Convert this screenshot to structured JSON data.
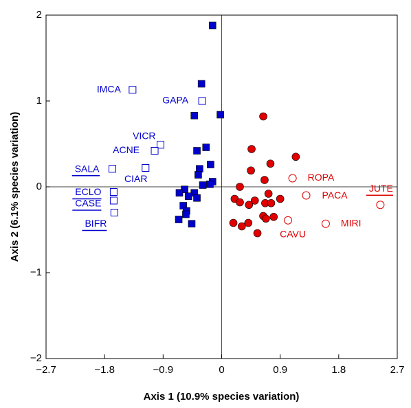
{
  "chart_data": {
    "type": "scatter",
    "x_label": "Axis 1 (10.9% species variation)",
    "y_label": "Axis 2 (6.1% species variation)",
    "xlim": [
      -2.7,
      2.7
    ],
    "ylim": [
      -2,
      2
    ],
    "xticks": [
      {
        "value": -2.7,
        "label": "−2.7"
      },
      {
        "value": -1.8,
        "label": "−1.8"
      },
      {
        "value": -0.9,
        "label": "−0.9"
      },
      0,
      0.9,
      1.8,
      2.7
    ],
    "yticks": [
      {
        "value": -2,
        "label": "−2"
      },
      {
        "value": -1,
        "label": "−1"
      },
      0,
      1,
      2
    ],
    "series": [
      {
        "color": "#0000cc",
        "marker": "square",
        "filled": true,
        "x": [
          -0.14,
          -0.31,
          -0.42,
          -0.02,
          -0.24,
          -0.38,
          -0.17,
          -0.34,
          -0.36,
          -0.14,
          -0.18,
          -0.29,
          -0.57,
          -0.65,
          -0.42,
          -0.51,
          -0.38,
          -0.59,
          -0.54,
          -0.66,
          -0.46,
          -0.55
        ],
        "y": [
          1.88,
          1.2,
          0.83,
          0.84,
          0.46,
          0.42,
          0.26,
          0.21,
          0.14,
          0.06,
          0.03,
          0.02,
          -0.03,
          -0.07,
          -0.07,
          -0.11,
          -0.13,
          -0.22,
          -0.28,
          -0.38,
          -0.43,
          -0.32
        ]
      },
      {
        "color": "#e00000",
        "marker": "circle",
        "filled": true,
        "x": [
          0.64,
          0.46,
          1.14,
          0.75,
          0.45,
          0.66,
          0.28,
          0.72,
          0.2,
          0.28,
          0.51,
          0.67,
          0.76,
          0.9,
          0.42,
          0.64,
          0.8,
          0.41,
          0.18,
          0.31,
          0.55,
          0.68
        ],
        "y": [
          0.82,
          0.44,
          0.35,
          0.27,
          0.19,
          0.08,
          0.0,
          -0.08,
          -0.14,
          -0.18,
          -0.16,
          -0.19,
          -0.19,
          -0.14,
          -0.21,
          -0.34,
          -0.35,
          -0.42,
          -0.42,
          -0.46,
          -0.54,
          -0.37
        ]
      },
      {
        "color": "#0000cc",
        "marker": "square",
        "filled": false,
        "labels": [
          "IMCA",
          "GAPA",
          "VICR",
          "ACNE",
          "CIAR",
          "SALA",
          "ECLO",
          "CASE",
          "BIFR"
        ],
        "x": [
          -1.37,
          -0.3,
          -0.94,
          -1.03,
          -1.17,
          -1.68,
          -1.66,
          -1.66,
          -1.65
        ],
        "y": [
          1.13,
          1.0,
          0.49,
          0.42,
          0.22,
          0.21,
          -0.06,
          -0.16,
          -0.3
        ]
      },
      {
        "color": "#e00000",
        "marker": "circle",
        "filled": false,
        "labels": [
          "ROPA",
          "PACA",
          "JUTE",
          "CAVU",
          "MIRI"
        ],
        "x": [
          1.09,
          1.3,
          2.44,
          1.02,
          1.6
        ],
        "y": [
          0.1,
          -0.1,
          -0.21,
          -0.39,
          -0.43
        ]
      }
    ]
  }
}
